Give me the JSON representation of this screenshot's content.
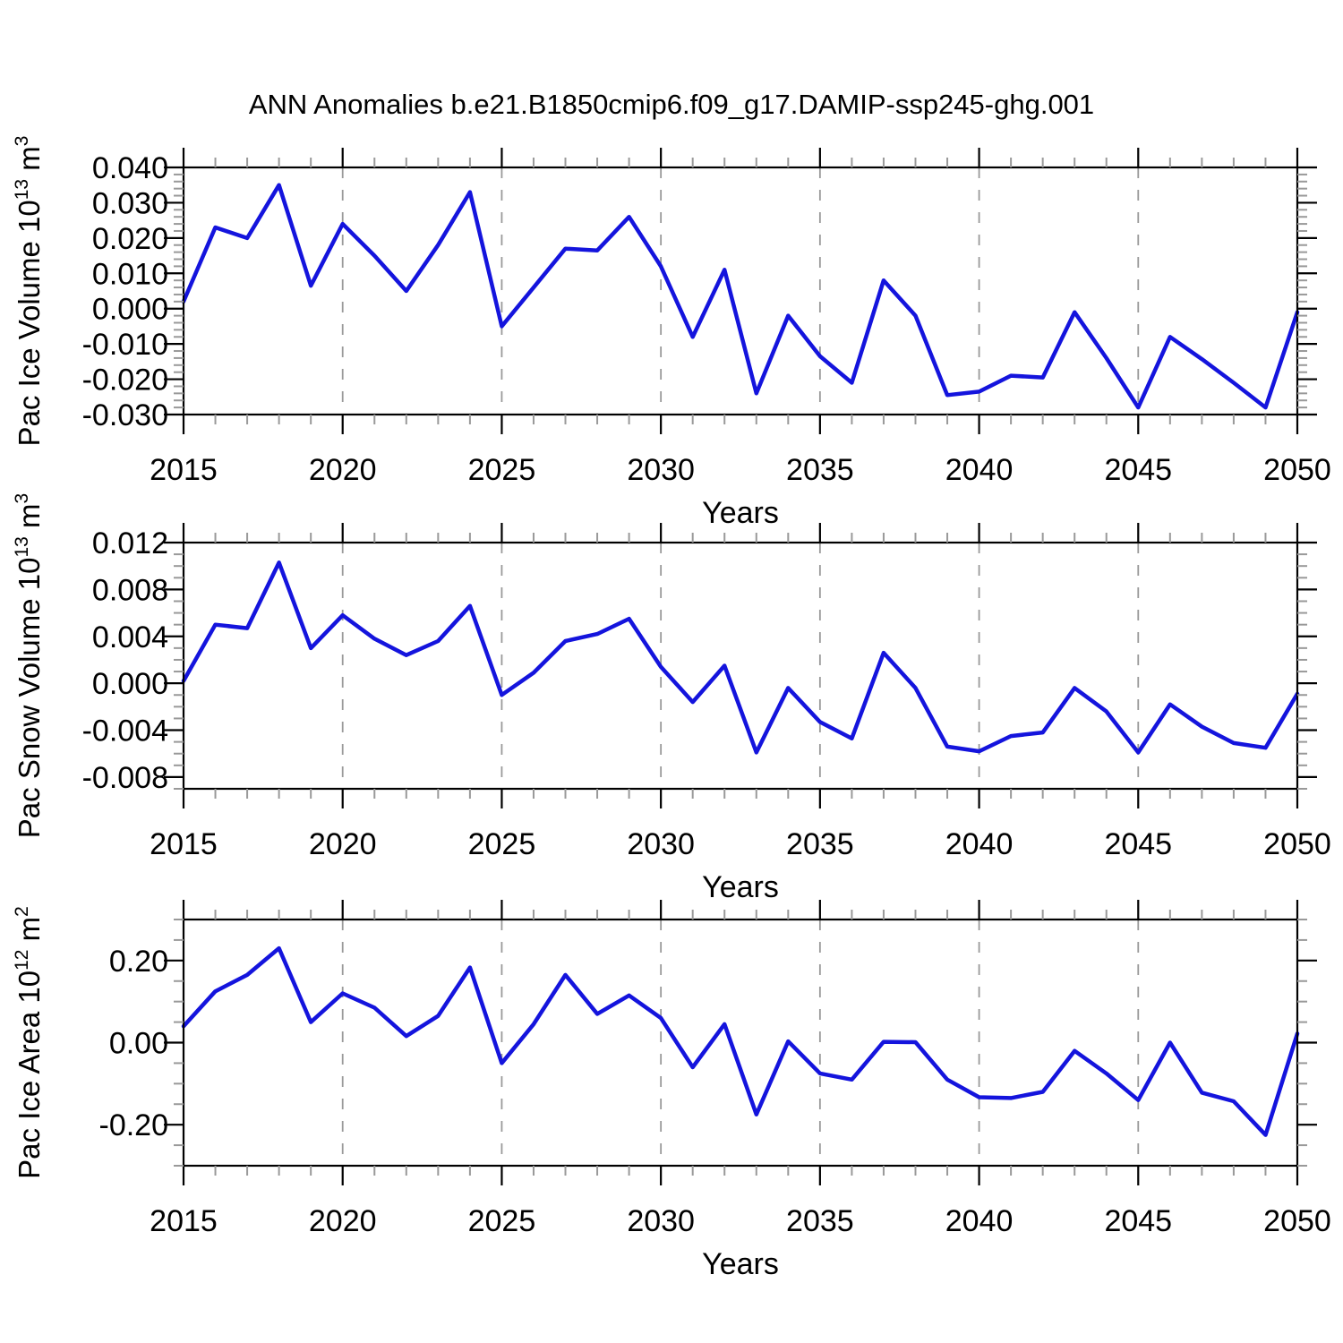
{
  "title": "ANN Anomalies b.e21.B1850cmip6.f09_g17.DAMIP-ssp245-ghg.001",
  "colors": {
    "line": "#1414dd",
    "axis": "#000000",
    "grid": "#999999",
    "minor_tick": "#999999",
    "text": "#000000",
    "background": "#ffffff"
  },
  "chart_data": [
    {
      "type": "line",
      "ylabel": "Pac Ice Volume 10^13 m^3",
      "ylabel_parts": [
        [
          "Pac Ice Volume 10",
          false
        ],
        [
          "13",
          true
        ],
        [
          " m",
          false
        ],
        [
          "3",
          true
        ]
      ],
      "xlabel": "Years",
      "xlim": [
        2015,
        2050
      ],
      "ylim": [
        -0.03,
        0.04
      ],
      "grid": true,
      "legend": null,
      "x": [
        2015,
        2016,
        2017,
        2018,
        2019,
        2020,
        2021,
        2022,
        2023,
        2024,
        2025,
        2026,
        2027,
        2028,
        2029,
        2030,
        2031,
        2032,
        2033,
        2034,
        2035,
        2036,
        2037,
        2038,
        2039,
        2040,
        2041,
        2042,
        2043,
        2044,
        2045,
        2046,
        2047,
        2048,
        2049,
        2050
      ],
      "values": [
        0.002,
        0.023,
        0.02,
        0.035,
        0.0065,
        0.024,
        0.015,
        0.005,
        0.018,
        0.033,
        -0.005,
        0.006,
        0.017,
        0.0165,
        0.026,
        0.012,
        -0.008,
        0.011,
        -0.024,
        -0.002,
        -0.0135,
        -0.021,
        0.008,
        -0.002,
        -0.0245,
        -0.0235,
        -0.019,
        -0.0195,
        -0.001,
        -0.014,
        -0.028,
        -0.008,
        -0.0143,
        -0.021,
        -0.028,
        -0.001
      ],
      "yticks": [
        0.04,
        0.03,
        0.02,
        0.01,
        0.0,
        -0.01,
        -0.02,
        -0.03
      ],
      "ytick_labels": [
        "0.040",
        "0.030",
        "0.020",
        "0.010",
        "0.000",
        "-0.010",
        "-0.020",
        "-0.030"
      ],
      "ytick_minor_step": 0.002,
      "xticks": [
        2015,
        2020,
        2025,
        2030,
        2035,
        2040,
        2045,
        2050
      ],
      "xtick_labels": [
        "2015",
        "2020",
        "2025",
        "2030",
        "2035",
        "2040",
        "2045",
        "2050"
      ],
      "xtick_minor_step": 1,
      "gridline_years": [
        2020,
        2025,
        2030,
        2035,
        2040,
        2045
      ]
    },
    {
      "type": "line",
      "ylabel": "Pac Snow Volume 10^13 m^3",
      "ylabel_parts": [
        [
          "Pac Snow Volume 10",
          false
        ],
        [
          "13",
          true
        ],
        [
          " m",
          false
        ],
        [
          "3",
          true
        ]
      ],
      "xlabel": "Years",
      "xlim": [
        2015,
        2050
      ],
      "ylim": [
        -0.009,
        0.012
      ],
      "grid": true,
      "legend": null,
      "x": [
        2015,
        2016,
        2017,
        2018,
        2019,
        2020,
        2021,
        2022,
        2023,
        2024,
        2025,
        2026,
        2027,
        2028,
        2029,
        2030,
        2031,
        2032,
        2033,
        2034,
        2035,
        2036,
        2037,
        2038,
        2039,
        2040,
        2041,
        2042,
        2043,
        2044,
        2045,
        2046,
        2047,
        2048,
        2049,
        2050
      ],
      "values": [
        0.0002,
        0.005,
        0.0047,
        0.0103,
        0.003,
        0.0058,
        0.0038,
        0.0024,
        0.0036,
        0.0066,
        -0.001,
        0.0009,
        0.0036,
        0.0042,
        0.0055,
        0.0014,
        -0.0016,
        0.0015,
        -0.0059,
        -0.0004,
        -0.0033,
        -0.0047,
        0.0026,
        -0.0004,
        -0.0054,
        -0.0058,
        -0.0045,
        -0.0042,
        -0.0004,
        -0.0024,
        -0.0059,
        -0.0018,
        -0.0037,
        -0.0051,
        -0.0055,
        -0.0009
      ],
      "yticks": [
        0.012,
        0.008,
        0.004,
        0.0,
        -0.004,
        -0.008
      ],
      "ytick_labels": [
        "0.012",
        "0.008",
        "0.004",
        "0.000",
        "-0.004",
        "-0.008"
      ],
      "ytick_minor_step": 0.001,
      "xticks": [
        2015,
        2020,
        2025,
        2030,
        2035,
        2040,
        2045,
        2050
      ],
      "xtick_labels": [
        "2015",
        "2020",
        "2025",
        "2030",
        "2035",
        "2040",
        "2045",
        "2050"
      ],
      "xtick_minor_step": 1,
      "gridline_years": [
        2020,
        2025,
        2030,
        2035,
        2040,
        2045
      ]
    },
    {
      "type": "line",
      "ylabel": "Pac Ice Area 10^12 m^2",
      "ylabel_parts": [
        [
          "Pac Ice Area 10",
          false
        ],
        [
          "12",
          true
        ],
        [
          " m",
          false
        ],
        [
          "2",
          true
        ]
      ],
      "xlabel": "Years",
      "xlim": [
        2015,
        2050
      ],
      "ylim": [
        -0.3,
        0.3
      ],
      "grid": true,
      "legend": null,
      "x": [
        2015,
        2016,
        2017,
        2018,
        2019,
        2020,
        2021,
        2022,
        2023,
        2024,
        2025,
        2026,
        2027,
        2028,
        2029,
        2030,
        2031,
        2032,
        2033,
        2034,
        2035,
        2036,
        2037,
        2038,
        2039,
        2040,
        2041,
        2042,
        2043,
        2044,
        2045,
        2046,
        2047,
        2048,
        2049,
        2050
      ],
      "values": [
        0.04,
        0.125,
        0.165,
        0.23,
        0.05,
        0.12,
        0.085,
        0.016,
        0.065,
        0.183,
        -0.05,
        0.045,
        0.165,
        0.07,
        0.115,
        0.06,
        -0.06,
        0.045,
        -0.175,
        0.003,
        -0.075,
        -0.09,
        0.002,
        0.001,
        -0.09,
        -0.133,
        -0.135,
        -0.12,
        -0.02,
        -0.075,
        -0.14,
        0.0,
        -0.122,
        -0.143,
        -0.225,
        0.022
      ],
      "yticks": [
        0.2,
        0.0,
        -0.2
      ],
      "ytick_labels": [
        "0.20",
        "0.00",
        "-0.20"
      ],
      "ytick_minor_step": 0.05,
      "xticks": [
        2015,
        2020,
        2025,
        2030,
        2035,
        2040,
        2045,
        2050
      ],
      "xtick_labels": [
        "2015",
        "2020",
        "2025",
        "2030",
        "2035",
        "2040",
        "2045",
        "2050"
      ],
      "xtick_minor_step": 1,
      "gridline_years": [
        2020,
        2025,
        2030,
        2035,
        2040,
        2045
      ]
    }
  ]
}
